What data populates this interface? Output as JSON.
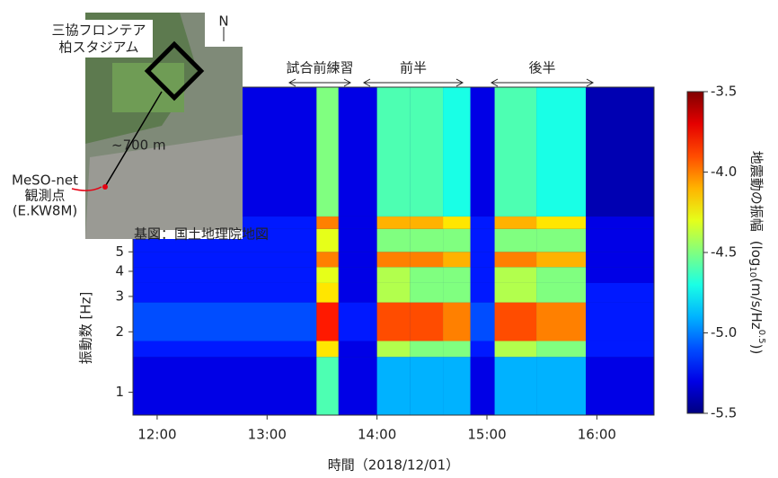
{
  "chart_data": {
    "type": "heatmap",
    "xbins": [
      11.78,
      13.45,
      13.65,
      14.0,
      14.3,
      14.6,
      14.85,
      15.07,
      15.45,
      15.9,
      16.52
    ],
    "ybins": [
      0.77,
      1.5,
      1.8,
      2.8,
      3.5,
      4.2,
      5,
      6.5,
      7.5,
      33
    ],
    "values": [
      [
        -5.3,
        -4.6,
        -5.3,
        -4.9,
        -4.9,
        -4.9,
        -5.3,
        -4.9,
        -4.9,
        -5.3
      ],
      [
        -5.2,
        -4.2,
        -5.3,
        -4.4,
        -4.5,
        -4.5,
        -5.2,
        -4.4,
        -4.5,
        -5.2
      ],
      [
        -5.1,
        -3.8,
        -5.2,
        -3.9,
        -3.9,
        -4.0,
        -5.1,
        -3.9,
        -4.0,
        -5.2
      ],
      [
        -5.2,
        -4.2,
        -5.3,
        -4.4,
        -4.5,
        -4.5,
        -5.2,
        -4.4,
        -4.5,
        -5.2
      ],
      [
        -5.2,
        -4.3,
        -5.3,
        -4.4,
        -4.5,
        -4.5,
        -5.2,
        -4.4,
        -4.5,
        -5.3
      ],
      [
        -5.2,
        -4.0,
        -5.3,
        -4.0,
        -4.0,
        -4.1,
        -5.2,
        -4.0,
        -4.1,
        -5.3
      ],
      [
        -5.2,
        -4.3,
        -5.3,
        -4.5,
        -4.5,
        -4.5,
        -5.2,
        -4.5,
        -4.5,
        -5.3
      ],
      [
        -5.2,
        -4.0,
        -5.3,
        -4.1,
        -4.1,
        -4.2,
        -5.2,
        -4.1,
        -4.2,
        -5.3
      ],
      [
        -5.3,
        -4.5,
        -5.3,
        -4.6,
        -4.6,
        -4.7,
        -5.3,
        -4.6,
        -4.7,
        -5.4
      ]
    ],
    "xlim": [
      11.78,
      16.52
    ],
    "ylim": [
      0.77,
      33
    ],
    "log_y": true,
    "xticks": [
      {
        "value": 12,
        "label": "12:00"
      },
      {
        "value": 13,
        "label": "13:00"
      },
      {
        "value": 14,
        "label": "14:00"
      },
      {
        "value": 15,
        "label": "15:00"
      },
      {
        "value": 16,
        "label": "16:00"
      }
    ],
    "yticks": [
      1,
      2,
      3,
      4,
      5
    ],
    "xlabel": "時間（2018/12/01）",
    "ylabel": "振動数 [Hz]",
    "annotations": [
      "試合前練習",
      "前半",
      "後半"
    ],
    "colorbar": {
      "clim": [
        -5.5,
        -3.5
      ],
      "ticks": [
        -3.5,
        {
          "value": -4,
          "label": "-4.0"
        },
        -4.5,
        {
          "value": -5,
          "label": "-5.0"
        },
        -5.5
      ],
      "label": [
        "地震動の振幅",
        "(log",
        "10",
        "(m/s/Hz",
        "0.5",
        "))"
      ]
    }
  },
  "inset_map": {
    "stadium": [
      "三協フロンテア",
      "柏スタジアム"
    ],
    "distance": "~700 m",
    "station": [
      "MeSO-net",
      "観測点",
      "(E.KW8M)"
    ],
    "credit": "基図：国土地理院地図",
    "north": "N"
  }
}
